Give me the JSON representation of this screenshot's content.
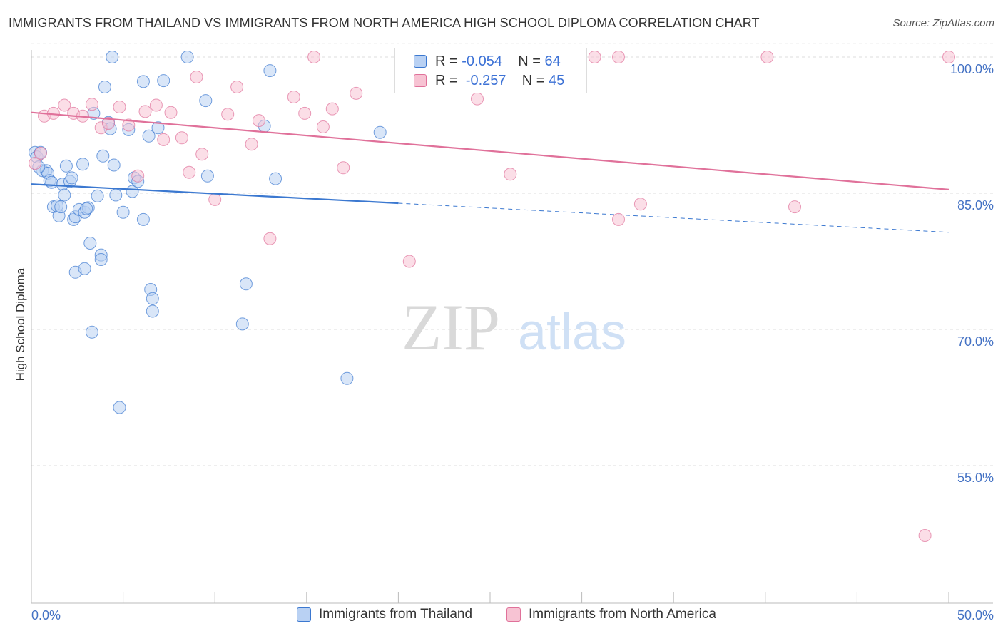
{
  "title": "IMMIGRANTS FROM THAILAND VS IMMIGRANTS FROM NORTH AMERICA HIGH SCHOOL DIPLOMA CORRELATION CHART",
  "source": "Source: ZipAtlas.com",
  "watermark": {
    "zip": "ZIP",
    "atlas": "atlas"
  },
  "colors": {
    "blue": "#3b78d0",
    "blue_fill": "#b9d1f3",
    "pink": "#e0719a",
    "pink_fill": "#f7c3d3",
    "axis_label": "#4472c4"
  },
  "legend": {
    "rows": [
      {
        "r_label": "R =",
        "r_value": "-0.054",
        "n_label": "N =",
        "n_value": "64"
      },
      {
        "r_label": "R =",
        "r_value": "-0.257",
        "n_label": "N =",
        "n_value": "45"
      }
    ]
  },
  "chart_data": {
    "type": "scatter",
    "ylabel": "High School Diploma",
    "xlim": [
      0,
      50
    ],
    "ylim": [
      40,
      101.5
    ],
    "x_tick_labels": [
      "0.0%",
      "50.0%"
    ],
    "y_ticks": [
      55,
      70,
      85,
      100
    ],
    "y_tick_labels": [
      "55.0%",
      "70.0%",
      "85.0%",
      "100.0%"
    ],
    "grid": "horizontal dashed",
    "series": [
      {
        "name": "Immigrants from Thailand",
        "color": "blue",
        "trend": {
          "x0": 0,
          "y0": 86.0,
          "x1": 20,
          "y1": 83.9,
          "dash_x1": 50,
          "dash_y1": 80.7
        },
        "points": [
          [
            0.2,
            89.5
          ],
          [
            0.3,
            89.0
          ],
          [
            0.5,
            89.5
          ],
          [
            0.6,
            87.5
          ],
          [
            0.8,
            87.5
          ],
          [
            0.9,
            87.2
          ],
          [
            1.0,
            86.4
          ],
          [
            1.1,
            86.2
          ],
          [
            1.2,
            83.5
          ],
          [
            1.4,
            83.6
          ],
          [
            1.5,
            82.5
          ],
          [
            1.7,
            86.0
          ],
          [
            1.8,
            84.8
          ],
          [
            1.9,
            88.0
          ],
          [
            2.1,
            86.3
          ],
          [
            2.2,
            86.7
          ],
          [
            2.3,
            82.1
          ],
          [
            2.4,
            82.4
          ],
          [
            2.4,
            76.3
          ],
          [
            2.6,
            83.2
          ],
          [
            2.8,
            88.2
          ],
          [
            2.9,
            82.9
          ],
          [
            2.9,
            76.7
          ],
          [
            3.1,
            83.4
          ],
          [
            3.2,
            79.5
          ],
          [
            3.3,
            69.7
          ],
          [
            3.4,
            93.8
          ],
          [
            3.6,
            84.7
          ],
          [
            3.8,
            78.2
          ],
          [
            3.8,
            77.7
          ],
          [
            3.9,
            89.1
          ],
          [
            4.0,
            96.7
          ],
          [
            4.2,
            92.8
          ],
          [
            4.3,
            92.1
          ],
          [
            4.4,
            100.0
          ],
          [
            4.5,
            88.1
          ],
          [
            4.6,
            84.8
          ],
          [
            4.8,
            61.4
          ],
          [
            5.0,
            82.9
          ],
          [
            5.3,
            92.0
          ],
          [
            5.5,
            85.2
          ],
          [
            5.6,
            86.7
          ],
          [
            5.8,
            86.3
          ],
          [
            6.1,
            97.3
          ],
          [
            6.1,
            82.1
          ],
          [
            6.4,
            91.3
          ],
          [
            6.5,
            74.4
          ],
          [
            6.6,
            73.4
          ],
          [
            6.6,
            72.0
          ],
          [
            6.9,
            92.2
          ],
          [
            7.2,
            97.4
          ],
          [
            8.5,
            100.0
          ],
          [
            9.5,
            95.2
          ],
          [
            9.6,
            86.9
          ],
          [
            11.5,
            70.6
          ],
          [
            11.7,
            75.0
          ],
          [
            12.7,
            92.4
          ],
          [
            13.0,
            98.5
          ],
          [
            13.3,
            86.6
          ],
          [
            17.2,
            64.6
          ],
          [
            19.0,
            91.7
          ],
          [
            0.4,
            87.9
          ],
          [
            1.6,
            83.5
          ],
          [
            3.0,
            83.3
          ]
        ]
      },
      {
        "name": "Immigrants from North America",
        "color": "pink",
        "trend": {
          "x0": 0,
          "y0": 93.9,
          "x1": 50,
          "y1": 85.4
        },
        "points": [
          [
            0.2,
            88.3
          ],
          [
            0.5,
            89.4
          ],
          [
            0.7,
            93.5
          ],
          [
            1.2,
            93.8
          ],
          [
            1.8,
            94.7
          ],
          [
            2.3,
            93.8
          ],
          [
            2.8,
            93.5
          ],
          [
            3.3,
            94.8
          ],
          [
            3.8,
            92.2
          ],
          [
            4.2,
            92.7
          ],
          [
            4.8,
            94.5
          ],
          [
            5.3,
            92.5
          ],
          [
            5.8,
            86.9
          ],
          [
            6.2,
            94.0
          ],
          [
            6.8,
            94.7
          ],
          [
            7.2,
            90.9
          ],
          [
            7.6,
            93.9
          ],
          [
            8.2,
            91.1
          ],
          [
            8.6,
            87.3
          ],
          [
            9.0,
            97.8
          ],
          [
            9.3,
            89.3
          ],
          [
            10.0,
            84.3
          ],
          [
            10.7,
            93.7
          ],
          [
            11.2,
            96.7
          ],
          [
            12.0,
            90.4
          ],
          [
            12.4,
            93.0
          ],
          [
            13.0,
            80.0
          ],
          [
            14.3,
            95.6
          ],
          [
            14.9,
            93.8
          ],
          [
            15.4,
            100.0
          ],
          [
            15.9,
            92.3
          ],
          [
            16.4,
            94.3
          ],
          [
            17.0,
            87.8
          ],
          [
            17.7,
            96.0
          ],
          [
            20.6,
            77.5
          ],
          [
            24.3,
            95.4
          ],
          [
            26.1,
            87.1
          ],
          [
            30.7,
            100.0
          ],
          [
            32.0,
            82.1
          ],
          [
            32.0,
            100.0
          ],
          [
            33.2,
            83.8
          ],
          [
            40.1,
            100.0
          ],
          [
            41.6,
            83.5
          ],
          [
            50.0,
            100.0
          ],
          [
            48.7,
            47.3
          ]
        ]
      }
    ]
  }
}
